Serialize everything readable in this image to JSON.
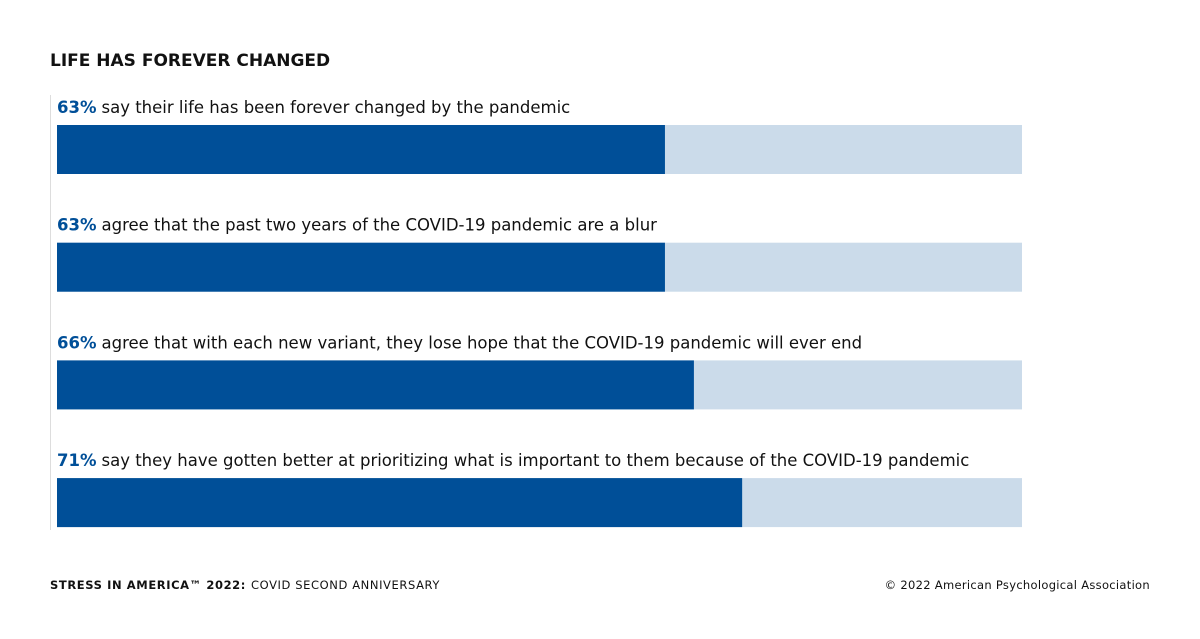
{
  "chart_data": {
    "type": "bar",
    "orientation": "horizontal",
    "title": "LIFE HAS FOREVER CHANGED",
    "categories": [
      "say their life has been forever changed by the pandemic",
      "agree that the past two years of the COVID-19 pandemic are a blur",
      "agree that with each new variant, they lose hope that the COVID-19 pandemic will ever end",
      "say they have gotten better at prioritizing what is important to them because of the COVID-19 pandemic"
    ],
    "values": [
      63,
      63,
      66,
      71
    ],
    "value_labels": [
      "63%",
      "63%",
      "66%",
      "71%"
    ],
    "color": "#004f98",
    "track_color": "#cbdbea",
    "xlim": [
      0,
      100
    ]
  },
  "footer": {
    "source_bold": "STRESS IN AMERICA™ 2022:",
    "source": "COVID SECOND ANNIVERSARY",
    "copyright": "© 2022 American Psychological Association"
  }
}
